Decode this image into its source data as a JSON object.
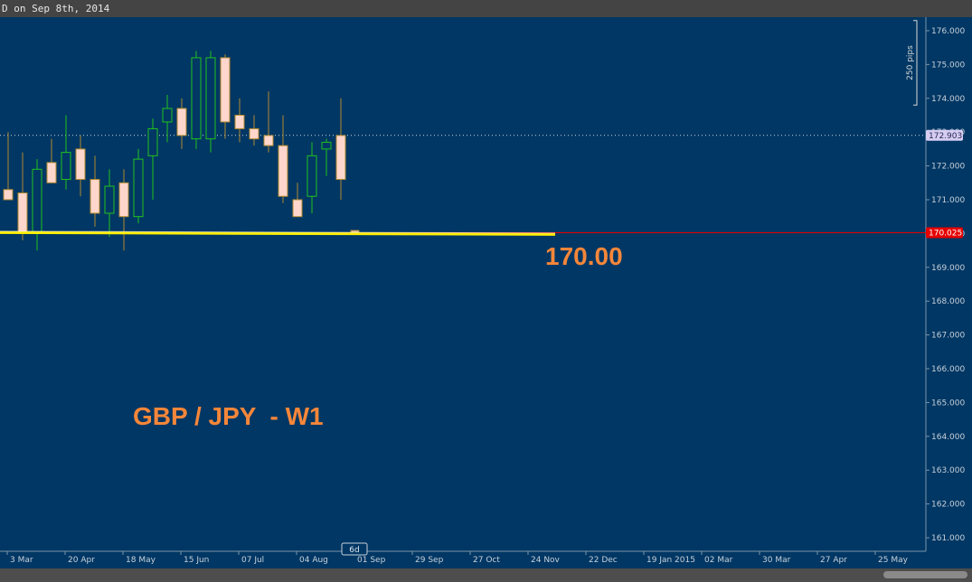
{
  "window": {
    "title": "D on Sep 8th, 2014"
  },
  "annotations": {
    "pair_label": "GBP / JPY  - W1",
    "level_label": "170.00",
    "pips_label": "250 pips"
  },
  "price_tags": {
    "current": "172.903",
    "line": "170.025"
  },
  "time_marker": "6d",
  "colors": {
    "background": "#003764",
    "bull": "#22c21e",
    "bear_fill": "#ffd6cc",
    "bear_outline": "#b28a30",
    "support_line": "#ffee00",
    "price_line": "#e60000",
    "annotation_text": "#f5863a",
    "current_tag": "#d6cdf3",
    "price_tag": "#e60000"
  },
  "chart_data": {
    "type": "candlestick",
    "title": "GBP / JPY  - W1",
    "timeframe": "W1",
    "ylim": [
      160.6,
      176.4
    ],
    "y_ticks": [
      "176.000",
      "175.000",
      "174.000",
      "173.000",
      "172.000",
      "171.000",
      "170.000",
      "169.000",
      "168.000",
      "167.000",
      "166.000",
      "165.000",
      "164.000",
      "163.000",
      "162.000",
      "161.000"
    ],
    "y_tick_values": [
      176,
      175,
      174,
      173,
      172,
      171,
      170,
      169,
      168,
      167,
      166,
      165,
      164,
      163,
      162,
      161
    ],
    "x_ticks": [
      "3 Mar",
      "20 Apr",
      "18 May",
      "15 Jun",
      "07 Jul",
      "04 Aug",
      "01 Sep",
      "29 Sep",
      "27 Oct",
      "24 Nov",
      "22 Dec",
      "19 Jan 2015",
      "02 Mar",
      "30 Mar",
      "27 Apr",
      "25 May"
    ],
    "candles": [
      {
        "open": 171.3,
        "high": 173.0,
        "low": 171.0,
        "close": 171.0
      },
      {
        "open": 171.2,
        "high": 172.4,
        "low": 169.8,
        "close": 170.0
      },
      {
        "open": 170.0,
        "high": 172.2,
        "low": 169.5,
        "close": 171.9
      },
      {
        "open": 172.1,
        "high": 172.8,
        "low": 171.5,
        "close": 171.5
      },
      {
        "open": 171.6,
        "high": 173.5,
        "low": 171.3,
        "close": 172.4
      },
      {
        "open": 172.5,
        "high": 172.9,
        "low": 171.1,
        "close": 171.6
      },
      {
        "open": 171.6,
        "high": 172.3,
        "low": 170.2,
        "close": 170.6
      },
      {
        "open": 170.6,
        "high": 171.9,
        "low": 169.9,
        "close": 171.4
      },
      {
        "open": 171.5,
        "high": 171.9,
        "low": 169.5,
        "close": 170.5
      },
      {
        "open": 170.5,
        "high": 172.5,
        "low": 170.3,
        "close": 172.2
      },
      {
        "open": 172.3,
        "high": 173.4,
        "low": 171.0,
        "close": 173.1
      },
      {
        "open": 173.3,
        "high": 174.1,
        "low": 172.7,
        "close": 173.7
      },
      {
        "open": 173.7,
        "high": 174.0,
        "low": 172.5,
        "close": 172.9
      },
      {
        "open": 172.8,
        "high": 175.4,
        "low": 172.5,
        "close": 175.2
      },
      {
        "open": 172.8,
        "high": 175.4,
        "low": 172.4,
        "close": 175.2
      },
      {
        "open": 175.2,
        "high": 175.3,
        "low": 172.8,
        "close": 173.3
      },
      {
        "open": 173.5,
        "high": 174.0,
        "low": 172.7,
        "close": 173.1
      },
      {
        "open": 173.1,
        "high": 173.5,
        "low": 172.6,
        "close": 172.8
      },
      {
        "open": 172.9,
        "high": 174.2,
        "low": 172.4,
        "close": 172.6
      },
      {
        "open": 172.6,
        "high": 173.5,
        "low": 170.9,
        "close": 171.1
      },
      {
        "open": 171.0,
        "high": 171.5,
        "low": 170.5,
        "close": 170.5
      },
      {
        "open": 171.1,
        "high": 172.7,
        "low": 170.6,
        "close": 172.3
      },
      {
        "open": 172.5,
        "high": 172.8,
        "low": 171.7,
        "close": 172.7
      },
      {
        "open": 172.9,
        "high": 174.0,
        "low": 171.0,
        "close": 171.6
      }
    ],
    "support_level": 170.0,
    "current_price": 172.903,
    "price_line_value": 170.025,
    "grid": false,
    "legend": "none"
  }
}
